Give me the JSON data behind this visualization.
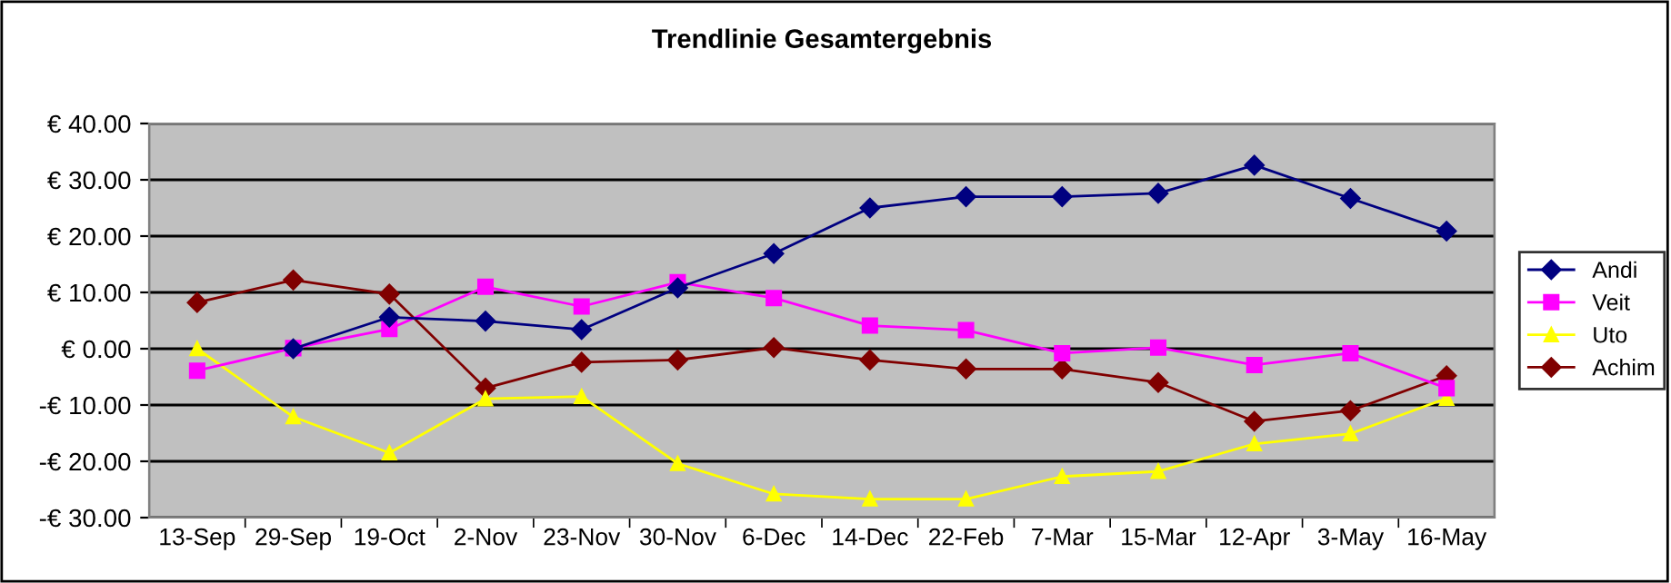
{
  "chart_data": {
    "type": "line",
    "title": "Trendlinie Gesamtergebnis",
    "categories": [
      "13-Sep",
      "29-Sep",
      "19-Oct",
      "2-Nov",
      "23-Nov",
      "30-Nov",
      "6-Dec",
      "14-Dec",
      "22-Feb",
      "7-Mar",
      "15-Mar",
      "12-Apr",
      "3-May",
      "16-May"
    ],
    "series": [
      {
        "name": "Andi",
        "color": "#000080",
        "marker": "diamond",
        "values": [
          null,
          0,
          5.6,
          4.9,
          3.4,
          10.8,
          16.9,
          25.0,
          27.0,
          27.0,
          27.6,
          32.6,
          26.7,
          20.9
        ]
      },
      {
        "name": "Veit",
        "color": "#ff00ff",
        "marker": "square",
        "values": [
          -3.9,
          0.1,
          3.5,
          11.0,
          7.5,
          11.8,
          9.0,
          4.1,
          3.3,
          -0.8,
          0.2,
          -2.9,
          -0.8,
          -7.0
        ]
      },
      {
        "name": "Uto",
        "color": "#ffff00",
        "marker": "triangle",
        "values": [
          0,
          -12.1,
          -18.5,
          -8.9,
          -8.5,
          -20.4,
          -25.8,
          -26.7,
          -26.7,
          -22.7,
          -21.8,
          -16.9,
          -15.1,
          -8.8
        ]
      },
      {
        "name": "Achim",
        "color": "#800000",
        "marker": "diamond",
        "values": [
          8.2,
          12.2,
          9.7,
          -7.0,
          -2.4,
          -2.0,
          0.2,
          -2.0,
          -3.6,
          -3.6,
          -6.0,
          -12.9,
          -11.0,
          -4.8
        ]
      }
    ],
    "ylim": [
      -30,
      40
    ],
    "yticks": [
      {
        "value": 40,
        "label": "€ 40.00"
      },
      {
        "value": 30,
        "label": "€ 30.00"
      },
      {
        "value": 20,
        "label": "€ 20.00"
      },
      {
        "value": 10,
        "label": "€ 10.00"
      },
      {
        "value": 0,
        "label": "€ 0.00"
      },
      {
        "value": -10,
        "label": "-€ 10.00"
      },
      {
        "value": -20,
        "label": "-€ 20.00"
      },
      {
        "value": -30,
        "label": "-€ 30.00"
      }
    ],
    "grid": "y",
    "legend": "right",
    "line_style": "solid"
  }
}
